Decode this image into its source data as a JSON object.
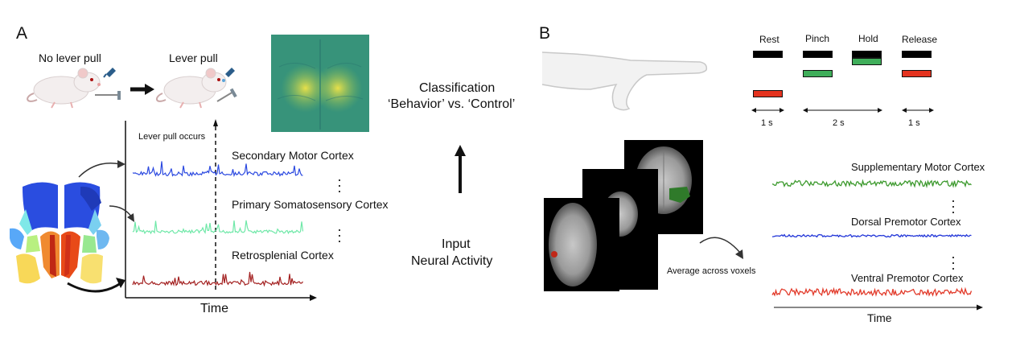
{
  "panel_a": {
    "label": "A",
    "no_pull_label": "No lever pull",
    "pull_label": "Lever pull",
    "pull_occurs_label": "Lever pull occurs",
    "time_label": "Time",
    "traces": [
      {
        "label": "Secondary Motor Cortex",
        "color": "#2b49e0"
      },
      {
        "label": "Primary Somatosensory Cortex",
        "color": "#6fe8a8"
      },
      {
        "label": "Retrosplenial Cortex",
        "color": "#a32020"
      }
    ]
  },
  "middle": {
    "classification_line1": "Classification",
    "classification_line2": "‘Behavior’ vs. ‘Control’",
    "input_line1": "Input",
    "input_line2": "Neural Activity"
  },
  "panel_b": {
    "label": "B",
    "conditions": [
      "Rest",
      "Pinch",
      "Hold",
      "Release"
    ],
    "durations": [
      "1 s",
      "2 s",
      "1 s"
    ],
    "cue_colors": {
      "black": "#000000",
      "green": "#3fae5a",
      "red": "#e4331f"
    },
    "average_label": "Average across voxels",
    "time_label": "Time",
    "traces": [
      {
        "label": "Supplementary Motor Cortex",
        "color": "#3d9a2e"
      },
      {
        "label": "Dorsal Premotor Cortex",
        "color": "#2236d8"
      },
      {
        "label": "Ventral Premotor Cortex",
        "color": "#e23a2a"
      }
    ]
  }
}
